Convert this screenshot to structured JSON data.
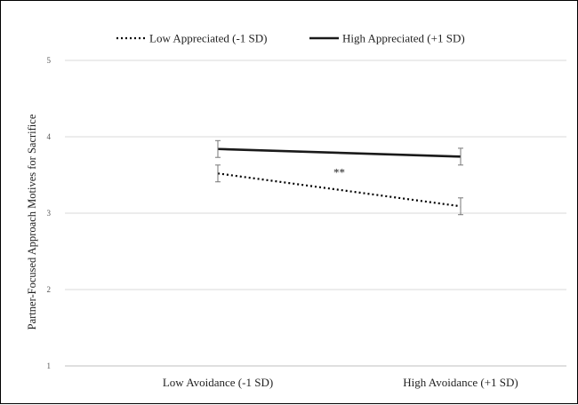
{
  "chart_data": {
    "type": "line",
    "title": "",
    "xlabel": "",
    "ylabel": "Partner-Focused Approach Motives for Sacrifice",
    "ylim": [
      1,
      5
    ],
    "yticks": [
      1,
      2,
      3,
      4,
      5
    ],
    "categories": [
      "Low Avoidance (-1 SD)",
      "High Avoidance (+1 SD)"
    ],
    "grid": true,
    "legend_position": "top",
    "series": [
      {
        "name": "Low Appreciated (-1 SD)",
        "values": [
          3.52,
          3.09
        ],
        "error": [
          0.11,
          0.11
        ],
        "line_style": "dotted",
        "color": "#000000"
      },
      {
        "name": "High Appreciated (+1 SD)",
        "values": [
          3.84,
          3.74
        ],
        "error": [
          0.11,
          0.11
        ],
        "line_style": "solid",
        "color": "#1a1a1a"
      }
    ],
    "annotations": [
      {
        "text": "**",
        "x": 0.5,
        "y": 3.48
      }
    ]
  }
}
